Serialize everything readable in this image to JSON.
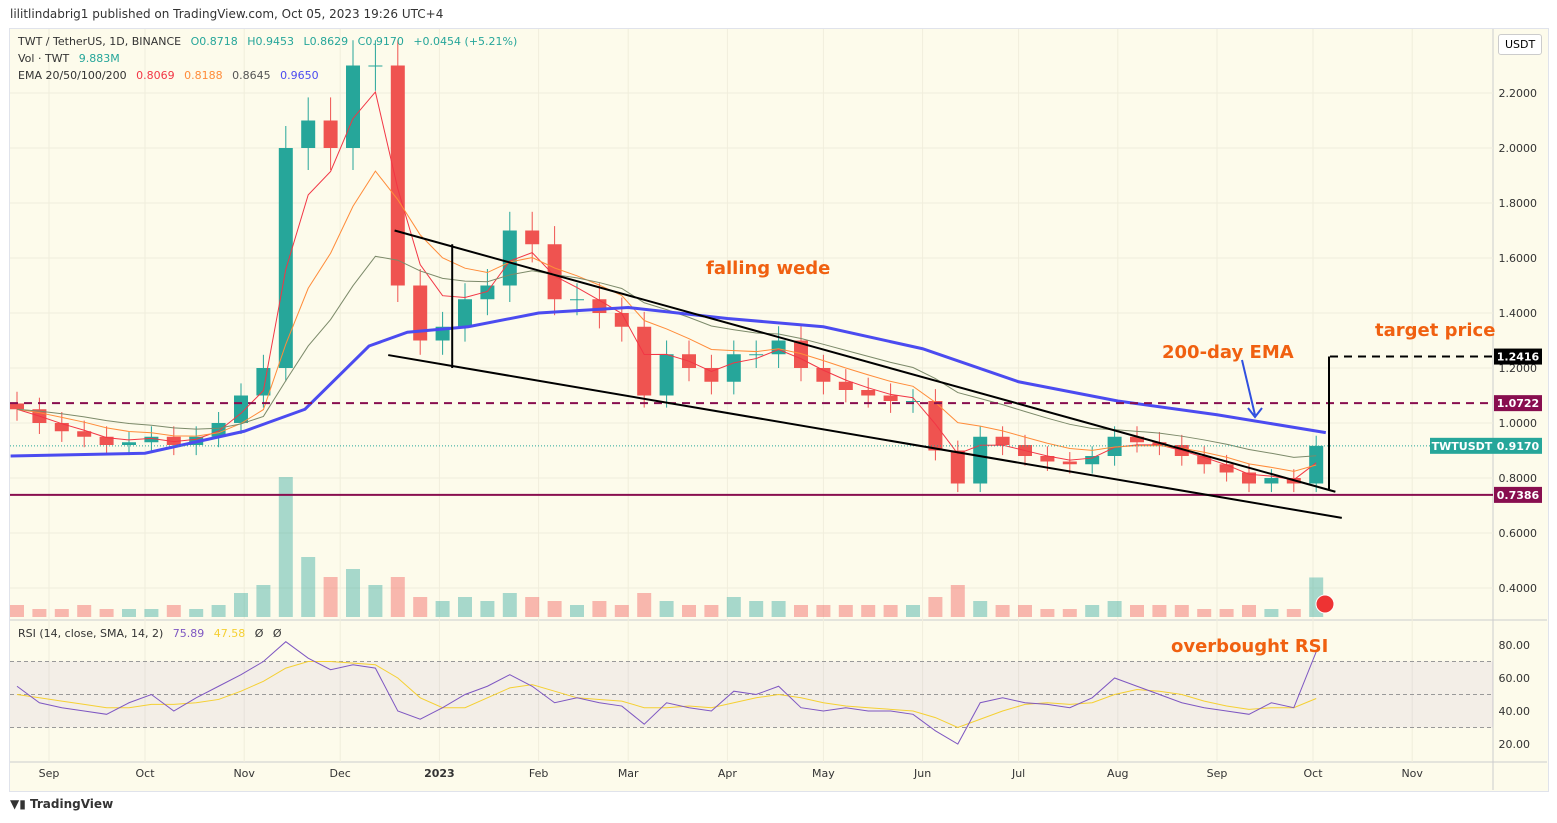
{
  "publisher_line": "lilitlindabrig1 published on TradingView.com, Oct 05, 2023 19:26 UTC+4",
  "legend": {
    "symbol": "TWT / TetherUS, 1D, BINANCE",
    "o": "O0.8718",
    "h": "H0.9453",
    "l": "L0.8629",
    "c": "C0.9170",
    "change": "+0.0454 (+5.21%)",
    "vol_label": "Vol · TWT",
    "vol_value": "9.883M",
    "ema_label": "EMA 20/50/100/200",
    "ema20": "0.8069",
    "ema50": "0.8188",
    "ema100": "0.8645",
    "ema200": "0.9650",
    "rsi_label": "RSI (14, close, SMA, 14, 2)",
    "rsi": "75.89",
    "rsi_ma": "47.58",
    "rsi_x1": "Ø",
    "rsi_x2": "Ø"
  },
  "currency": "USDT",
  "footer": "TradingView",
  "colors": {
    "up": "#26a69a",
    "down": "#ef5350",
    "ema20": "#f23645",
    "ema50": "#ff8c3a",
    "ema100": "#7c8a6a",
    "ema200": "#4b4bf0",
    "level": "#880e4f",
    "rsi": "#7e57c2",
    "rsi_ma": "#f5d033",
    "annotation": "#f06010"
  },
  "annotations": {
    "pattern": "falling wede",
    "ema": "200-day EMA",
    "target": "target price",
    "rsi": "overbought RSI"
  },
  "chart_data": [
    {
      "type": "candlestick",
      "ylim": [
        0.3,
        2.45
      ],
      "y_ticks": [
        "2.2000",
        "2.0000",
        "1.8000",
        "1.6000",
        "1.4000",
        "1.2000",
        "1.0000",
        "0.8000",
        "0.6000",
        "0.4000"
      ],
      "x_ticks": [
        [
          "Sep",
          "2022-09-01"
        ],
        [
          "Oct",
          "2022-10-01"
        ],
        [
          "Nov",
          "2022-11-01"
        ],
        [
          "Dec",
          "2022-12-01"
        ],
        [
          "2023",
          "2023-01-01"
        ],
        [
          "Feb",
          "2023-02-01"
        ],
        [
          "Mar",
          "2023-03-01"
        ],
        [
          "Apr",
          "2023-04-01"
        ],
        [
          "May",
          "2023-05-01"
        ],
        [
          "Jun",
          "2023-06-01"
        ],
        [
          "Jul",
          "2023-07-01"
        ],
        [
          "Aug",
          "2023-08-01"
        ],
        [
          "Sep",
          "2023-09-01"
        ],
        [
          "Oct",
          "2023-10-01"
        ],
        [
          "Nov",
          "2023-11-01"
        ]
      ],
      "start": "2022-08-22",
      "step_days": 7,
      "closes": [
        1.05,
        1.0,
        0.97,
        0.95,
        0.92,
        0.93,
        0.95,
        0.92,
        0.95,
        1.0,
        1.1,
        1.2,
        2.0,
        2.1,
        2.0,
        2.3,
        2.3,
        1.5,
        1.3,
        1.35,
        1.45,
        1.5,
        1.7,
        1.65,
        1.45,
        1.45,
        1.4,
        1.35,
        1.1,
        1.25,
        1.2,
        1.15,
        1.25,
        1.25,
        1.3,
        1.2,
        1.15,
        1.12,
        1.1,
        1.08,
        1.08,
        0.9,
        0.78,
        0.95,
        0.92,
        0.88,
        0.86,
        0.85,
        0.88,
        0.95,
        0.93,
        0.92,
        0.88,
        0.85,
        0.82,
        0.78,
        0.8,
        0.78,
        0.917
      ],
      "volume_M": [
        3,
        2,
        2,
        3,
        2,
        2,
        2,
        3,
        2,
        3,
        6,
        8,
        35,
        15,
        10,
        12,
        8,
        10,
        5,
        4,
        5,
        4,
        6,
        5,
        4,
        3,
        4,
        3,
        6,
        4,
        3,
        3,
        5,
        4,
        4,
        3,
        3,
        3,
        3,
        3,
        3,
        5,
        8,
        4,
        3,
        3,
        2,
        2,
        3,
        4,
        3,
        3,
        3,
        2,
        2,
        3,
        2,
        2,
        9.883
      ],
      "ema200": [
        [
          "2022-08-20",
          0.88
        ],
        [
          "2022-10-01",
          0.89
        ],
        [
          "2022-11-01",
          0.97
        ],
        [
          "2022-11-20",
          1.05
        ],
        [
          "2022-12-10",
          1.28
        ],
        [
          "2022-12-22",
          1.33
        ],
        [
          "2023-01-10",
          1.35
        ],
        [
          "2023-02-01",
          1.4
        ],
        [
          "2023-03-01",
          1.42
        ],
        [
          "2023-04-01",
          1.38
        ],
        [
          "2023-05-01",
          1.35
        ],
        [
          "2023-06-01",
          1.27
        ],
        [
          "2023-07-01",
          1.15
        ],
        [
          "2023-08-01",
          1.08
        ],
        [
          "2023-09-01",
          1.03
        ],
        [
          "2023-10-05",
          0.965
        ]
      ],
      "levels": [
        {
          "value": 1.2416,
          "label": "1.2416",
          "style": "dashed",
          "color": "#000000"
        },
        {
          "value": 1.0722,
          "label": "1.0722",
          "style": "dashed",
          "color": "#880e4f"
        },
        {
          "value": 0.7386,
          "label": "0.7386",
          "style": "solid",
          "color": "#880e4f"
        }
      ],
      "last_price": {
        "label": "TWTUSDT",
        "value": "0.9170"
      },
      "trendlines": [
        [
          [
            "2022-12-18",
            1.7
          ],
          [
            "2023-10-08",
            0.75
          ]
        ],
        [
          [
            "2022-12-16",
            1.247
          ],
          [
            "2023-10-10",
            0.655
          ]
        ],
        [
          [
            "2023-01-05",
            1.65
          ],
          [
            "2023-01-05",
            1.2
          ]
        ],
        [
          [
            "2023-10-06",
            1.2416
          ],
          [
            "2023-10-06",
            0.76
          ]
        ]
      ]
    },
    {
      "type": "line",
      "name": "RSI",
      "ylim": [
        10,
        90
      ],
      "y_ticks": [
        "80.00",
        "60.00",
        "40.00",
        "20.00"
      ],
      "band": [
        30,
        70
      ],
      "values": [
        55,
        45,
        42,
        40,
        38,
        45,
        50,
        40,
        48,
        55,
        62,
        70,
        82,
        72,
        65,
        68,
        66,
        40,
        35,
        42,
        50,
        55,
        62,
        55,
        45,
        48,
        45,
        43,
        32,
        45,
        42,
        40,
        52,
        50,
        55,
        42,
        40,
        42,
        40,
        40,
        38,
        28,
        20,
        45,
        48,
        45,
        44,
        42,
        48,
        60,
        55,
        50,
        45,
        42,
        40,
        38,
        45,
        42,
        75.89
      ],
      "ma": [
        50,
        48,
        46,
        44,
        42,
        42,
        44,
        44,
        45,
        47,
        52,
        58,
        66,
        70,
        70,
        69,
        68,
        60,
        48,
        42,
        42,
        48,
        54,
        56,
        52,
        48,
        47,
        46,
        42,
        42,
        43,
        42,
        45,
        48,
        50,
        48,
        45,
        43,
        42,
        41,
        40,
        36,
        30,
        35,
        40,
        44,
        45,
        44,
        45,
        50,
        53,
        52,
        50,
        46,
        43,
        41,
        42,
        42,
        47.58
      ]
    }
  ]
}
